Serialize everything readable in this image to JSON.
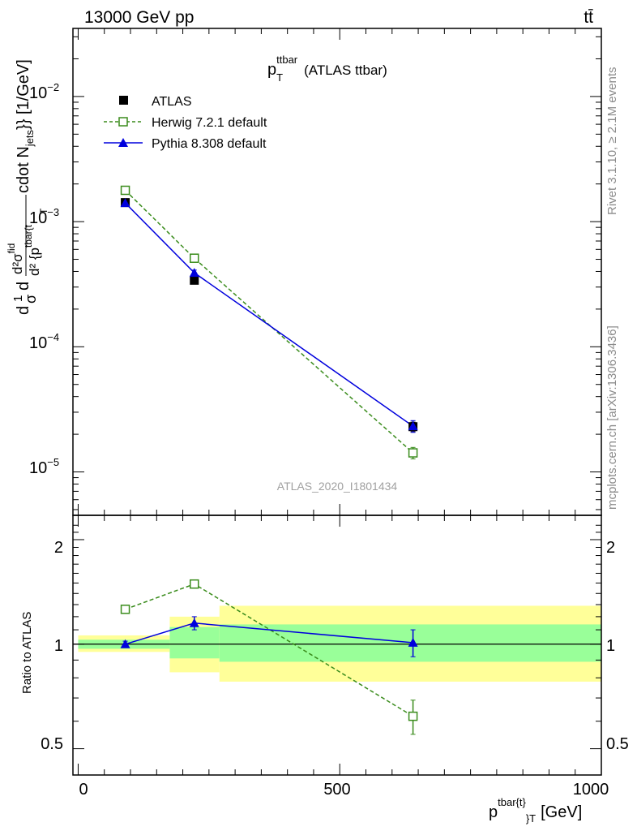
{
  "header": {
    "left": "13000 GeV pp",
    "right": "tt̄"
  },
  "side_labels": {
    "rivet": "Rivet 3.1.10, ≥ 2.1M events",
    "mcplots": "mcplots.cern.ch [arXiv:1306.3436]"
  },
  "chart_data": [
    {
      "type": "scatter",
      "panel": "main",
      "title": "p_T^ttbar (ATLAS ttbar)",
      "title_main": "p",
      "title_sup": "ttbar",
      "title_sub": "T",
      "title_tail": "(ATLAS ttbar)",
      "watermark": "ATLAS_2020_I1801434",
      "ylabel": "d1dσd d²σ^{fid} / d² {p_T^{tbar{t}}} cdot N_{jets}} [1/GeV]",
      "ylabel_parts": {
        "frac1_num": "1",
        "frac1_den": "σ",
        "d_char": "d",
        "frac2_num": "d²σ",
        "frac2_num_sup": "fid",
        "frac2_den": "d² {p",
        "frac2_den_sup": "tbar{t",
        "frac2_den_sub": "T",
        "tail_main": "cdot N",
        "tail_sub": "jets",
        "tail_end": "}} [1/GeV]"
      },
      "yscale": "log",
      "ylim": [
        4.5e-06,
        0.035
      ],
      "xlim": [
        -10,
        1000
      ],
      "y_ticks": [
        {
          "base": "10",
          "exp": "−5",
          "value": 1e-05
        },
        {
          "base": "10",
          "exp": "−4",
          "value": 0.0001
        },
        {
          "base": "10",
          "exp": "−3",
          "value": 0.001
        },
        {
          "base": "10",
          "exp": "−2",
          "value": 0.01
        }
      ],
      "legend_position": "top-left",
      "series": [
        {
          "name": "ATLAS",
          "color": "#000000",
          "marker": "filled-square",
          "line": "none",
          "x": [
            90,
            222,
            640
          ],
          "y": [
            0.00142,
            0.00034,
            2.3e-05
          ],
          "yerr": [
            4e-05,
            1e-05,
            2e-06
          ]
        },
        {
          "name": "Herwig 7.2.1 default",
          "color": "#3a8c1c",
          "marker": "open-square",
          "line": "dashed",
          "x": [
            90,
            222,
            640
          ],
          "y": [
            0.00178,
            0.00051,
            1.42e-05
          ],
          "yerr": [
            4e-05,
            2e-05,
            1.5e-06
          ]
        },
        {
          "name": "Pythia 8.308 default",
          "color": "#0000dd",
          "marker": "filled-triangle",
          "line": "solid",
          "x": [
            90,
            222,
            640
          ],
          "y": [
            0.00141,
            0.00039,
            2.32e-05
          ],
          "yerr": [
            3e-05,
            2e-05,
            2.5e-06
          ]
        }
      ]
    },
    {
      "type": "scatter",
      "panel": "ratio",
      "ylabel": "Ratio to ATLAS",
      "xlabel": "p_T^{tbar{t}} [GeV]",
      "xlabel_parts": {
        "main": "p",
        "sup": "tbar{t}",
        "sub": "}",
        "subT": "T",
        "tail": "[GeV]"
      },
      "xlim": [
        -10,
        1000
      ],
      "ylim": [
        0.42,
        2.35
      ],
      "yscale": "log",
      "x_ticks": [
        {
          "label": "0",
          "value": 0
        },
        {
          "label": "500",
          "value": 500
        },
        {
          "label": "1000",
          "value": 1000
        }
      ],
      "y_ticks": [
        {
          "label": "0.5",
          "value": 0.5
        },
        {
          "label": "1",
          "value": 1
        },
        {
          "label": "2",
          "value": 2
        }
      ],
      "bands": [
        {
          "x0": 0,
          "x1": 175,
          "yellow": [
            0.95,
            1.06
          ],
          "green": [
            0.97,
            1.03
          ]
        },
        {
          "x0": 175,
          "x1": 270,
          "yellow": [
            0.83,
            1.2
          ],
          "green": [
            0.91,
            1.12
          ]
        },
        {
          "x0": 270,
          "x1": 1000,
          "yellow": [
            0.78,
            1.29
          ],
          "green": [
            0.89,
            1.14
          ]
        }
      ],
      "series": [
        {
          "name": "Herwig 7.2.1 default",
          "color": "#3a8c1c",
          "marker": "open-square",
          "line": "dashed",
          "x": [
            90,
            222,
            640
          ],
          "y": [
            1.26,
            1.49,
            0.62
          ],
          "yerr": [
            0.02,
            0.04,
            0.07
          ]
        },
        {
          "name": "Pythia 8.308 default",
          "color": "#0000dd",
          "marker": "filled-triangle",
          "line": "solid",
          "x": [
            90,
            222,
            640
          ],
          "y": [
            1.0,
            1.15,
            1.01
          ],
          "yerr": [
            0.02,
            0.05,
            0.09
          ]
        }
      ]
    }
  ],
  "colors": {
    "band_yellow": "#ffff99",
    "band_green": "#99ff99",
    "watermark": "#a0a0a0",
    "side_text": "#8c8c8c"
  }
}
